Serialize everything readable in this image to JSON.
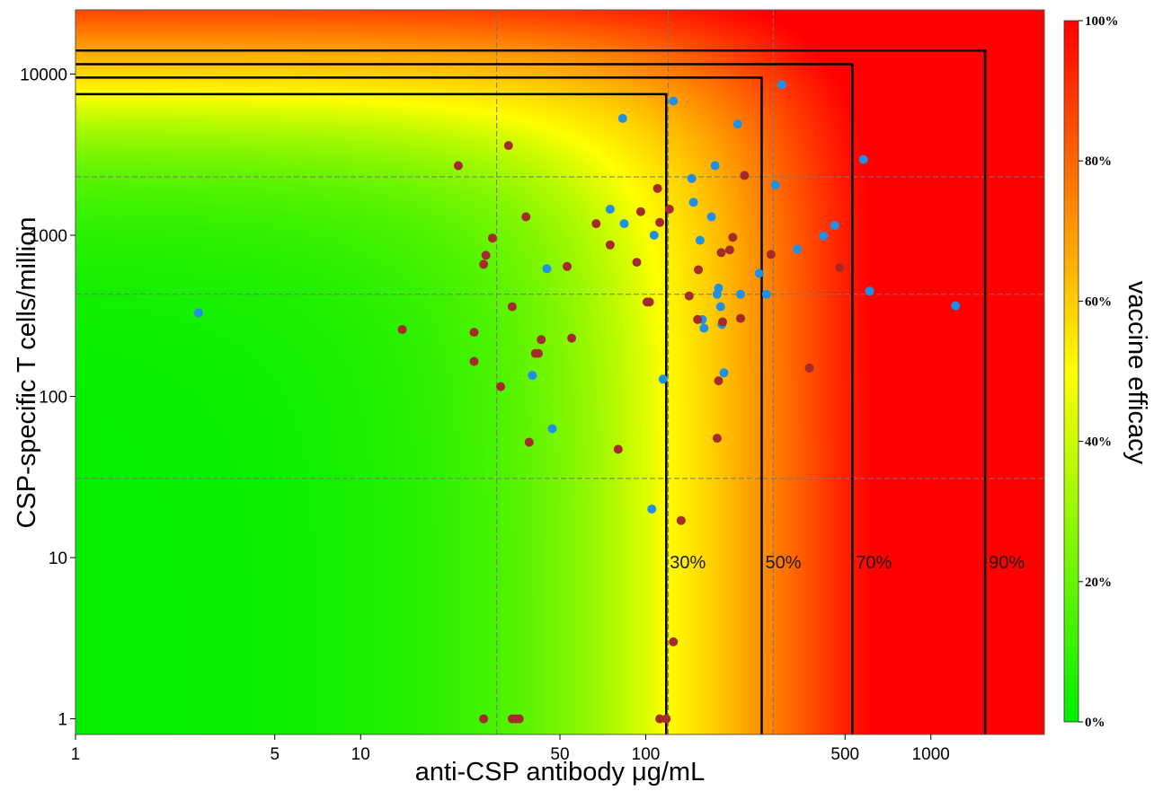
{
  "chart_data": {
    "type": "scatter",
    "title": "",
    "xlabel": "anti-CSP antibody  μg/mL",
    "ylabel": "CSP-specific T cells/million",
    "x_scale": "log",
    "y_scale": "log",
    "xlim": [
      1,
      2500
    ],
    "ylim": [
      0.8,
      25000
    ],
    "x_ticks": [
      1,
      5,
      10,
      50,
      100,
      500,
      1000
    ],
    "x_tick_labels": [
      "1",
      "5",
      "10",
      "50",
      "100",
      "500",
      "1000"
    ],
    "y_ticks": [
      1,
      10,
      100,
      1000,
      10000
    ],
    "y_tick_labels": [
      "1",
      "10",
      "100",
      "1000",
      "10000"
    ],
    "reference_lines": {
      "x": [
        30,
        120,
        280
      ],
      "y": [
        31,
        430,
        2300
      ],
      "style": "dashed gray"
    },
    "colorbar": {
      "label": "vaccine efficacy",
      "ticks": [
        "0%",
        "20%",
        "40%",
        "60%",
        "80%",
        "100%"
      ],
      "colors": [
        "#00ee00",
        "#ffff00",
        "#ff0000"
      ]
    },
    "contours": [
      {
        "label": "30%",
        "asymptote_x": 118,
        "asymptote_y": 7500,
        "label_y": 9.5
      },
      {
        "label": "50%",
        "asymptote_x": 255,
        "asymptote_y": 9500,
        "label_y": 9.5
      },
      {
        "label": "70%",
        "asymptote_x": 530,
        "asymptote_y": 11500,
        "label_y": 9.5
      },
      {
        "label": "90%",
        "asymptote_x": 1550,
        "asymptote_y": 14000,
        "label_y": 9.5
      }
    ],
    "series": [
      {
        "color": "#1e90e8",
        "points": [
          [
            2.7,
            330
          ],
          [
            45,
            620
          ],
          [
            40,
            135
          ],
          [
            47,
            63
          ],
          [
            75,
            1450
          ],
          [
            83,
            5300
          ],
          [
            84,
            1180
          ],
          [
            105,
            20
          ],
          [
            107,
            1000
          ],
          [
            115,
            128
          ],
          [
            125,
            6800
          ],
          [
            145,
            2250
          ],
          [
            147,
            1600
          ],
          [
            155,
            930
          ],
          [
            158,
            300
          ],
          [
            160,
            265
          ],
          [
            170,
            1300
          ],
          [
            175,
            2700
          ],
          [
            178,
            430
          ],
          [
            180,
            470
          ],
          [
            183,
            360
          ],
          [
            185,
            280
          ],
          [
            188,
            140
          ],
          [
            210,
            4900
          ],
          [
            215,
            430
          ],
          [
            250,
            580
          ],
          [
            265,
            430
          ],
          [
            285,
            2050
          ],
          [
            300,
            8600
          ],
          [
            340,
            820
          ],
          [
            420,
            990
          ],
          [
            460,
            1150
          ],
          [
            580,
            2950
          ],
          [
            610,
            450
          ],
          [
            1220,
            365
          ]
        ]
      },
      {
        "color": "#a52a2a",
        "points": [
          [
            14,
            260
          ],
          [
            22,
            2700
          ],
          [
            25,
            250
          ],
          [
            25,
            165
          ],
          [
            27,
            660
          ],
          [
            27.5,
            750
          ],
          [
            29,
            960
          ],
          [
            27,
            1
          ],
          [
            31,
            115
          ],
          [
            33,
            3600
          ],
          [
            34,
            1
          ],
          [
            34,
            360
          ],
          [
            35,
            1
          ],
          [
            36,
            1
          ],
          [
            38,
            1300
          ],
          [
            39,
            52
          ],
          [
            41,
            185
          ],
          [
            42,
            185
          ],
          [
            43,
            225
          ],
          [
            53,
            640
          ],
          [
            55,
            230
          ],
          [
            67,
            1180
          ],
          [
            75,
            870
          ],
          [
            80,
            47
          ],
          [
            93,
            680
          ],
          [
            96,
            1400
          ],
          [
            101,
            385
          ],
          [
            103,
            385
          ],
          [
            110,
            1950
          ],
          [
            112,
            1200
          ],
          [
            112,
            1
          ],
          [
            118,
            1
          ],
          [
            121,
            1450
          ],
          [
            125,
            3
          ],
          [
            133,
            17
          ],
          [
            142,
            420
          ],
          [
            152,
            300
          ],
          [
            153,
            610
          ],
          [
            178,
            55
          ],
          [
            180,
            125
          ],
          [
            184,
            780
          ],
          [
            186,
            290
          ],
          [
            197,
            810
          ],
          [
            202,
            970
          ],
          [
            215,
            305
          ],
          [
            222,
            2350
          ],
          [
            275,
            760
          ],
          [
            375,
            150
          ],
          [
            480,
            630
          ]
        ]
      }
    ]
  }
}
